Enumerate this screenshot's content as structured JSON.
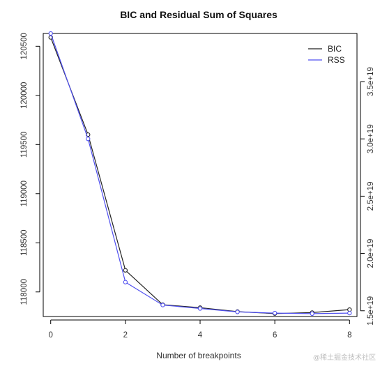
{
  "chart_data": {
    "type": "line",
    "title": "BIC and Residual Sum of Squares",
    "xlabel": "Number of breakpoints",
    "ylabel": "",
    "y2label": "",
    "x": [
      0,
      1,
      2,
      3,
      4,
      5,
      6,
      7,
      8
    ],
    "x_ticks": [
      0,
      2,
      4,
      6,
      8
    ],
    "x_tick_labels": [
      "0",
      "2",
      "4",
      "6",
      "8"
    ],
    "xlim": [
      -0.2,
      8.2
    ],
    "ylim": [
      117750,
      120630
    ],
    "y_ticks": [
      118000,
      118500,
      119000,
      119500,
      120000,
      120500
    ],
    "y_tick_labels": [
      "118000",
      "118500",
      "119000",
      "119500",
      "120000",
      "120500"
    ],
    "y2lim": [
      1.45e+19,
      3.92e+19
    ],
    "y2_ticks": [
      1.5e+19,
      2e+19,
      2.5e+19,
      3e+19,
      3.5e+19
    ],
    "y2_tick_labels": [
      "1.5e+19",
      "2.0e+19",
      "2.5e+19",
      "3.0e+19",
      "3.5e+19"
    ],
    "series": [
      {
        "name": "BIC",
        "axis": "left",
        "color": "#222222",
        "values": [
          120590,
          119600,
          118220,
          117870,
          117840,
          117800,
          117780,
          117790,
          117820
        ]
      },
      {
        "name": "RSS",
        "axis": "right",
        "color": "#4f4ff0",
        "values": [
          3.92e+19,
          3e+19,
          1.75e+19,
          1.55e+19,
          1.52e+19,
          1.49e+19,
          1.48e+19,
          1.475e+19,
          1.48e+19
        ]
      }
    ],
    "grid": false,
    "legend_position": "top-right",
    "watermark": "@稀土掘金技术社区"
  }
}
